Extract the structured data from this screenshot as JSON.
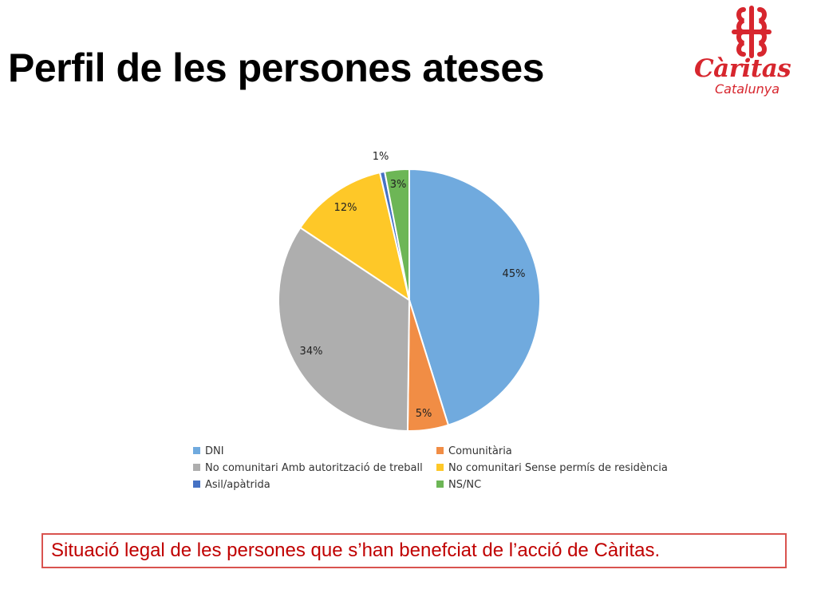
{
  "slide": {
    "title": "Perfil de les persones ateses",
    "caption": "Situació legal de les persones que s’han benefciat de l’acció de Càritas."
  },
  "logo": {
    "name": "Càritas",
    "subtitle": "Catalunya",
    "color": "#d7262e",
    "icon": "caritas-cross-icon"
  },
  "chart_data": {
    "type": "pie",
    "title": "",
    "unit": "%",
    "legend_position": "bottom",
    "slices": [
      {
        "name": "DNI",
        "value": 45,
        "label": "45%",
        "color": "#70aade"
      },
      {
        "name": "Comunitària",
        "value": 5,
        "label": "5%",
        "color": "#f18d45"
      },
      {
        "name": "No comunitari Amb autorització de treball",
        "value": 34,
        "label": "34%",
        "color": "#aeaeae"
      },
      {
        "name": "No comunitari Sense permís de residència",
        "value": 12,
        "label": "12%",
        "color": "#fec828"
      },
      {
        "name": "Asil/apàtrida",
        "value": 0.6,
        "label": "1%",
        "color": "#4672c4"
      },
      {
        "name": "NS/NC",
        "value": 3,
        "label": "3%",
        "color": "#6db656"
      }
    ]
  }
}
